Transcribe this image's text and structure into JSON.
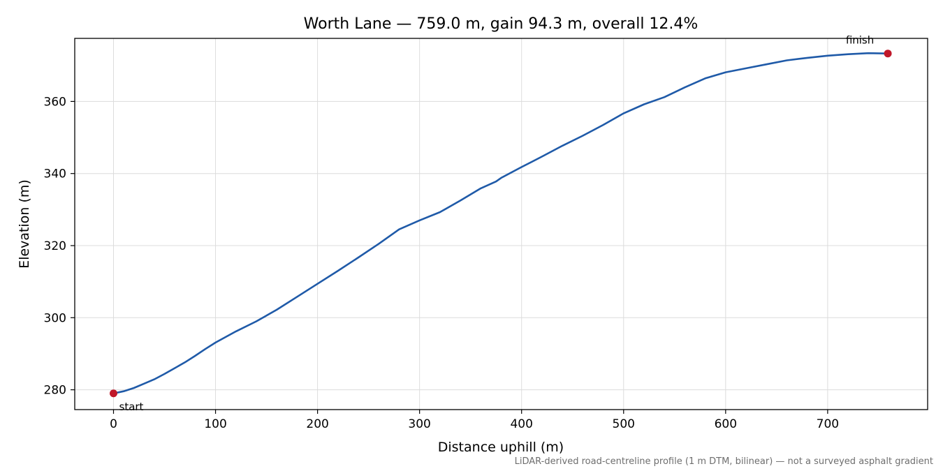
{
  "chart_data": {
    "type": "line",
    "title": "Worth Lane — 759.0 m, gain 94.3 m, overall 12.4%",
    "xlabel": "Distance uphill (m)",
    "ylabel": "Elevation (m)",
    "xlim": [
      -38,
      798
    ],
    "ylim": [
      274.5,
      377.5
    ],
    "xticks": [
      0,
      100,
      200,
      300,
      400,
      500,
      600,
      700
    ],
    "yticks": [
      280,
      300,
      320,
      340,
      360
    ],
    "grid": true,
    "line_color": "#1f5aa8",
    "marker_color": "#c0182a",
    "series": [
      {
        "x": [
          0,
          10,
          20,
          30,
          40,
          50,
          60,
          70,
          80,
          90,
          100,
          120,
          140,
          160,
          180,
          200,
          220,
          240,
          260,
          280,
          300,
          320,
          340,
          360,
          375,
          380,
          400,
          420,
          440,
          460,
          480,
          500,
          520,
          540,
          560,
          580,
          600,
          620,
          640,
          660,
          680,
          700,
          720,
          740,
          759
        ],
        "y": [
          279.0,
          279.6,
          280.5,
          281.7,
          282.9,
          284.4,
          286.0,
          287.6,
          289.4,
          291.3,
          293.1,
          296.2,
          299.0,
          302.2,
          305.8,
          309.4,
          313.0,
          316.7,
          320.5,
          324.5,
          327.0,
          329.3,
          332.5,
          335.9,
          337.8,
          338.8,
          341.8,
          344.7,
          347.7,
          350.5,
          353.5,
          356.7,
          359.2,
          361.2,
          363.9,
          366.4,
          368.1,
          369.2,
          370.3,
          371.4,
          372.1,
          372.7,
          373.1,
          373.4,
          373.3
        ]
      }
    ],
    "annotations": {
      "start": {
        "label": "start",
        "x": 0,
        "y": 279.0
      },
      "finish": {
        "label": "finish",
        "x": 759,
        "y": 373.3
      }
    },
    "footnote": "LiDAR-derived road-centreline profile (1 m DTM, bilinear) — not a surveyed asphalt gradient"
  }
}
